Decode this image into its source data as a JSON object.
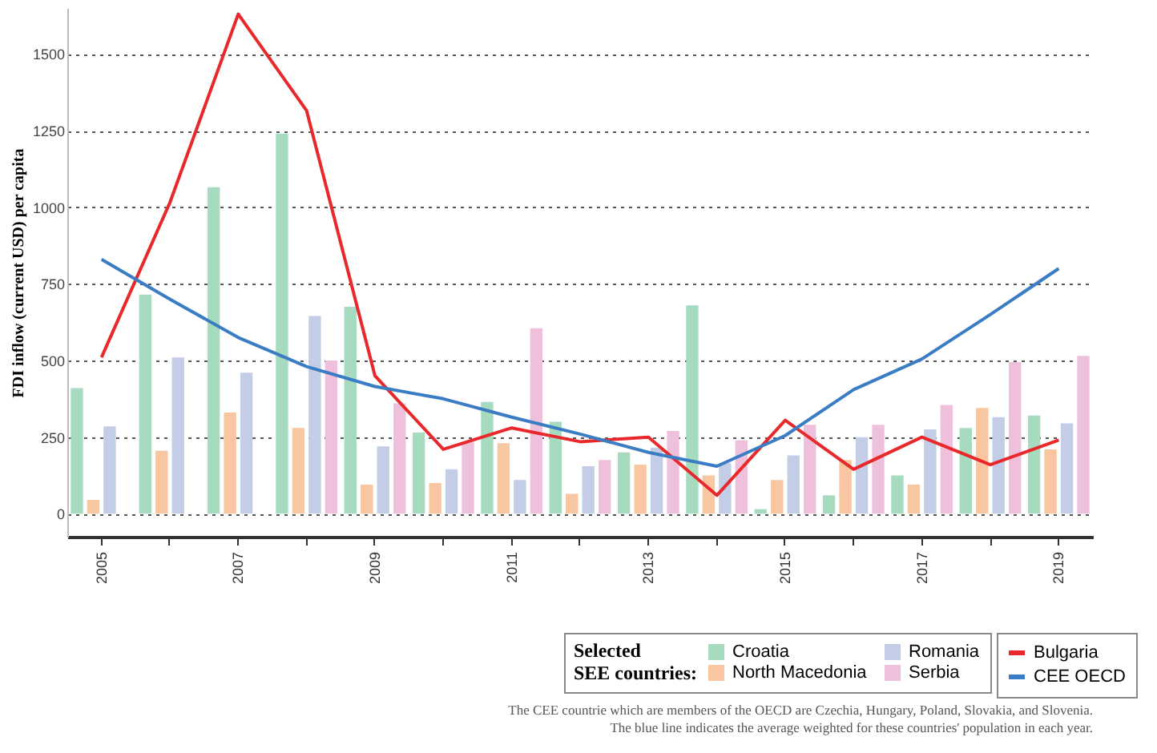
{
  "chart_data": {
    "type": "bar",
    "ylabel": "FDI inflow (current USD) per capita",
    "legend_title": "Selected SEE countries:",
    "categories": [
      "2005",
      null,
      "2007",
      null,
      "2009",
      null,
      "2011",
      null,
      "2013",
      null,
      "2015",
      null,
      "2017",
      null,
      "2019"
    ],
    "series": [
      {
        "name": "Croatia",
        "color": "#a6dbbf",
        "values": [
          410,
          715,
          1065,
          1240,
          675,
          265,
          365,
          300,
          200,
          680,
          15,
          60,
          125,
          280,
          320
        ]
      },
      {
        "name": "North Macedonia",
        "color": "#f8c6a0",
        "values": [
          45,
          205,
          330,
          280,
          95,
          100,
          230,
          65,
          160,
          125,
          110,
          175,
          95,
          345,
          210
        ]
      },
      {
        "name": "Romania",
        "color": "#c3cde6",
        "values": [
          285,
          510,
          460,
          645,
          220,
          145,
          110,
          155,
          215,
          165,
          190,
          250,
          275,
          315,
          295
        ]
      },
      {
        "name": "Serbia",
        "color": "#efc0dc",
        "values": [
          null,
          null,
          null,
          500,
          360,
          235,
          605,
          175,
          270,
          240,
          290,
          290,
          355,
          495,
          515
        ]
      },
      {
        "name": "Bulgaria",
        "type": "line",
        "color": "#e8282a",
        "values": [
          510,
          1015,
          1630,
          1315,
          450,
          210,
          280,
          235,
          250,
          60,
          305,
          145,
          250,
          160,
          240
        ]
      },
      {
        "name": "CEE OECD",
        "type": "line",
        "color": "#3a7dc4",
        "values": [
          830,
          700,
          575,
          480,
          415,
          375,
          315,
          260,
          200,
          155,
          255,
          405,
          505,
          650,
          800
        ]
      }
    ],
    "ylim": [
      -75,
      1650
    ],
    "yticks": [
      0,
      250,
      500,
      750,
      1000,
      1250,
      1500
    ],
    "grid": "y",
    "legend": "bottom right",
    "annotations": [
      "The CEE countrie which are members of the OECD are Czechia, Hungary, Poland, Slovakia, and Slovenia.",
      "The blue line indicates the average weighted for these countries' population in each year."
    ]
  }
}
